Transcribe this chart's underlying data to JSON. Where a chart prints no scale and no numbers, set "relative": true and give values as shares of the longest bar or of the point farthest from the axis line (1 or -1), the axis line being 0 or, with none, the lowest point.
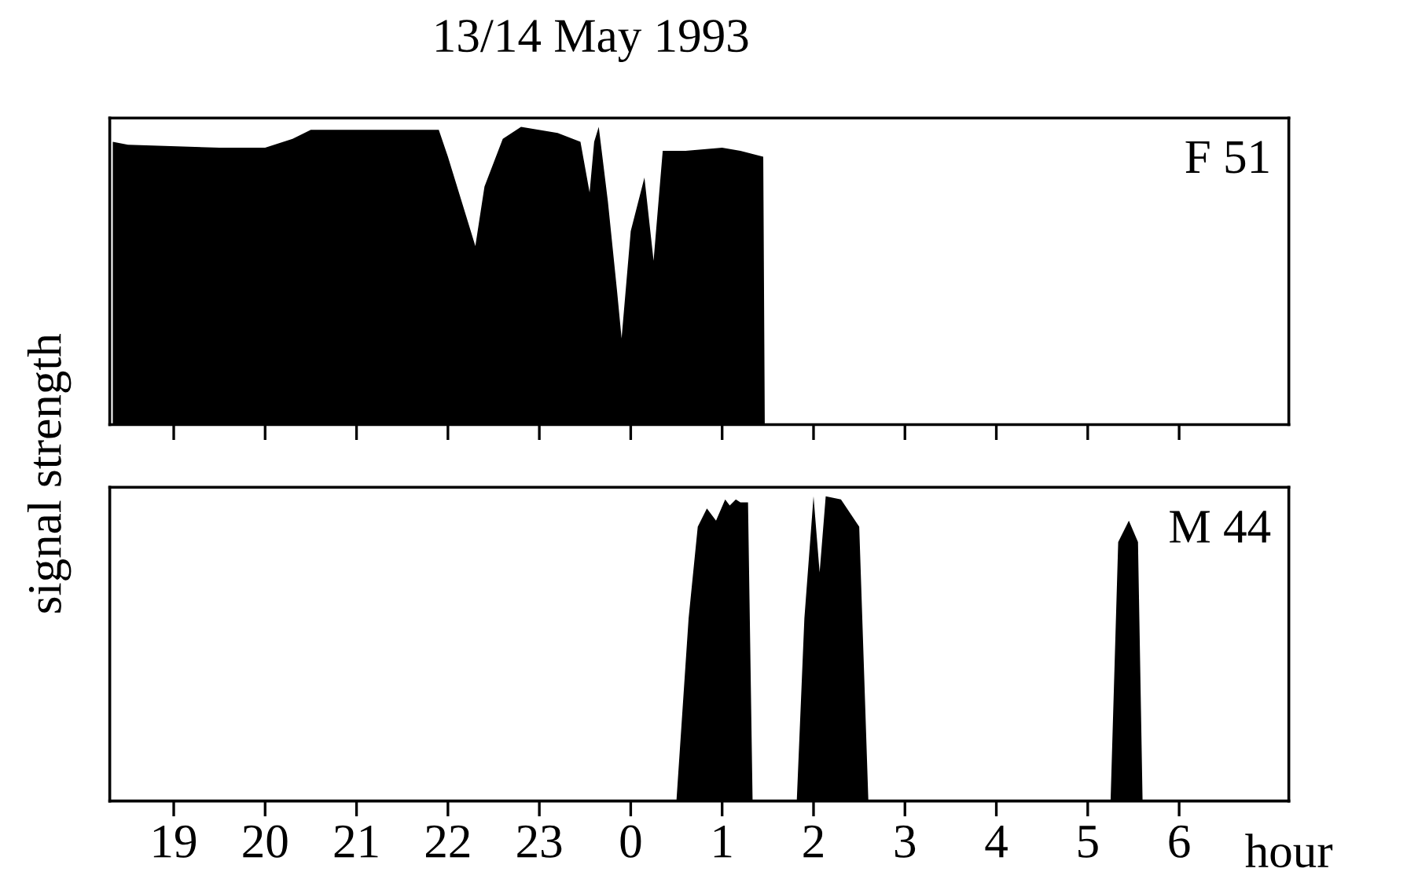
{
  "chart_data": [
    {
      "type": "area",
      "title": "13/14 May 1993",
      "ylabel": "signal strength",
      "relative": true,
      "tick_labels": false,
      "legend": false,
      "grid": false,
      "xlim": [
        "1993-05-13T18:18",
        "1993-05-14T07:12"
      ],
      "xticks": [
        {
          "value": "1993-05-13T19:00",
          "label": null
        },
        {
          "value": "1993-05-13T20:00",
          "label": null
        },
        {
          "value": "1993-05-13T21:00",
          "label": null
        },
        {
          "value": "1993-05-13T22:00",
          "label": null
        },
        {
          "value": "1993-05-13T23:00",
          "label": null
        },
        {
          "value": "1993-05-14T00:00",
          "label": null
        },
        {
          "value": "1993-05-14T01:00",
          "label": null
        },
        {
          "value": "1993-05-14T02:00",
          "label": null
        },
        {
          "value": "1993-05-14T03:00",
          "label": null
        },
        {
          "value": "1993-05-14T04:00",
          "label": null
        },
        {
          "value": "1993-05-14T05:00",
          "label": null
        },
        {
          "value": "1993-05-14T06:00",
          "label": null
        }
      ],
      "series": [
        {
          "name": "F 51",
          "color": "#000000",
          "x": [
            "1993-05-13T18:20",
            "1993-05-13T18:30",
            "1993-05-13T19:30",
            "1993-05-13T20:00",
            "1993-05-13T20:18",
            "1993-05-13T20:30",
            "1993-05-13T21:30",
            "1993-05-13T21:54",
            "1993-05-13T22:00",
            "1993-05-13T22:12",
            "1993-05-13T22:18",
            "1993-05-13T22:24",
            "1993-05-13T22:36",
            "1993-05-13T22:48",
            "1993-05-13T23:12",
            "1993-05-13T23:27",
            "1993-05-13T23:33",
            "1993-05-13T23:36",
            "1993-05-13T23:39",
            "1993-05-13T23:45",
            "1993-05-13T23:51",
            "1993-05-13T23:54",
            "1993-05-14T00:00",
            "1993-05-14T00:09",
            "1993-05-14T00:15",
            "1993-05-14T00:21",
            "1993-05-14T00:36",
            "1993-05-14T01:00",
            "1993-05-14T01:12",
            "1993-05-14T01:27",
            "1993-05-14T01:28",
            "1993-05-14T07:12"
          ],
          "values": [
            0.95,
            0.94,
            0.93,
            0.93,
            0.96,
            0.99,
            0.99,
            0.99,
            0.9,
            0.7,
            0.6,
            0.8,
            0.96,
            1.0,
            0.98,
            0.95,
            0.78,
            0.95,
            1.0,
            0.75,
            0.45,
            0.29,
            0.65,
            0.83,
            0.55,
            0.92,
            0.92,
            0.93,
            0.92,
            0.9,
            0,
            0
          ]
        }
      ]
    },
    {
      "type": "area",
      "xlabel": "hour",
      "relative": true,
      "tick_labels": "x",
      "legend": false,
      "grid": false,
      "xlim": [
        "1993-05-13T18:18",
        "1993-05-14T07:12"
      ],
      "xticks": [
        {
          "value": "1993-05-13T19:00",
          "label": "19"
        },
        {
          "value": "1993-05-13T20:00",
          "label": "20"
        },
        {
          "value": "1993-05-13T21:00",
          "label": "21"
        },
        {
          "value": "1993-05-13T22:00",
          "label": "22"
        },
        {
          "value": "1993-05-13T23:00",
          "label": "23"
        },
        {
          "value": "1993-05-14T00:00",
          "label": "0"
        },
        {
          "value": "1993-05-14T01:00",
          "label": "1"
        },
        {
          "value": "1993-05-14T02:00",
          "label": "2"
        },
        {
          "value": "1993-05-14T03:00",
          "label": "3"
        },
        {
          "value": "1993-05-14T04:00",
          "label": "4"
        },
        {
          "value": "1993-05-14T05:00",
          "label": "5"
        },
        {
          "value": "1993-05-14T06:00",
          "label": "6"
        }
      ],
      "series": [
        {
          "name": "M 44",
          "color": "#000000",
          "x": [
            "1993-05-13T18:18",
            "1993-05-14T00:30",
            "1993-05-14T00:38",
            "1993-05-14T00:44",
            "1993-05-14T00:50",
            "1993-05-14T00:56",
            "1993-05-14T01:02",
            "1993-05-14T01:05",
            "1993-05-14T01:09",
            "1993-05-14T01:12",
            "1993-05-14T01:17",
            "1993-05-14T01:20",
            "1993-05-14T01:49",
            "1993-05-14T01:54",
            "1993-05-14T02:00",
            "1993-05-14T02:04",
            "1993-05-14T02:08",
            "1993-05-14T02:18",
            "1993-05-14T02:30",
            "1993-05-14T02:36",
            "1993-05-14T05:15",
            "1993-05-14T05:20",
            "1993-05-14T05:27",
            "1993-05-14T05:33",
            "1993-05-14T05:36",
            "1993-05-14T07:12"
          ],
          "values": [
            0,
            0,
            0.6,
            0.9,
            0.96,
            0.92,
            0.99,
            0.97,
            0.99,
            0.98,
            0.98,
            0,
            0,
            0.6,
            1.0,
            0.75,
            1.0,
            0.99,
            0.9,
            0,
            0,
            0.85,
            0.92,
            0.85,
            0,
            0
          ]
        }
      ]
    }
  ]
}
